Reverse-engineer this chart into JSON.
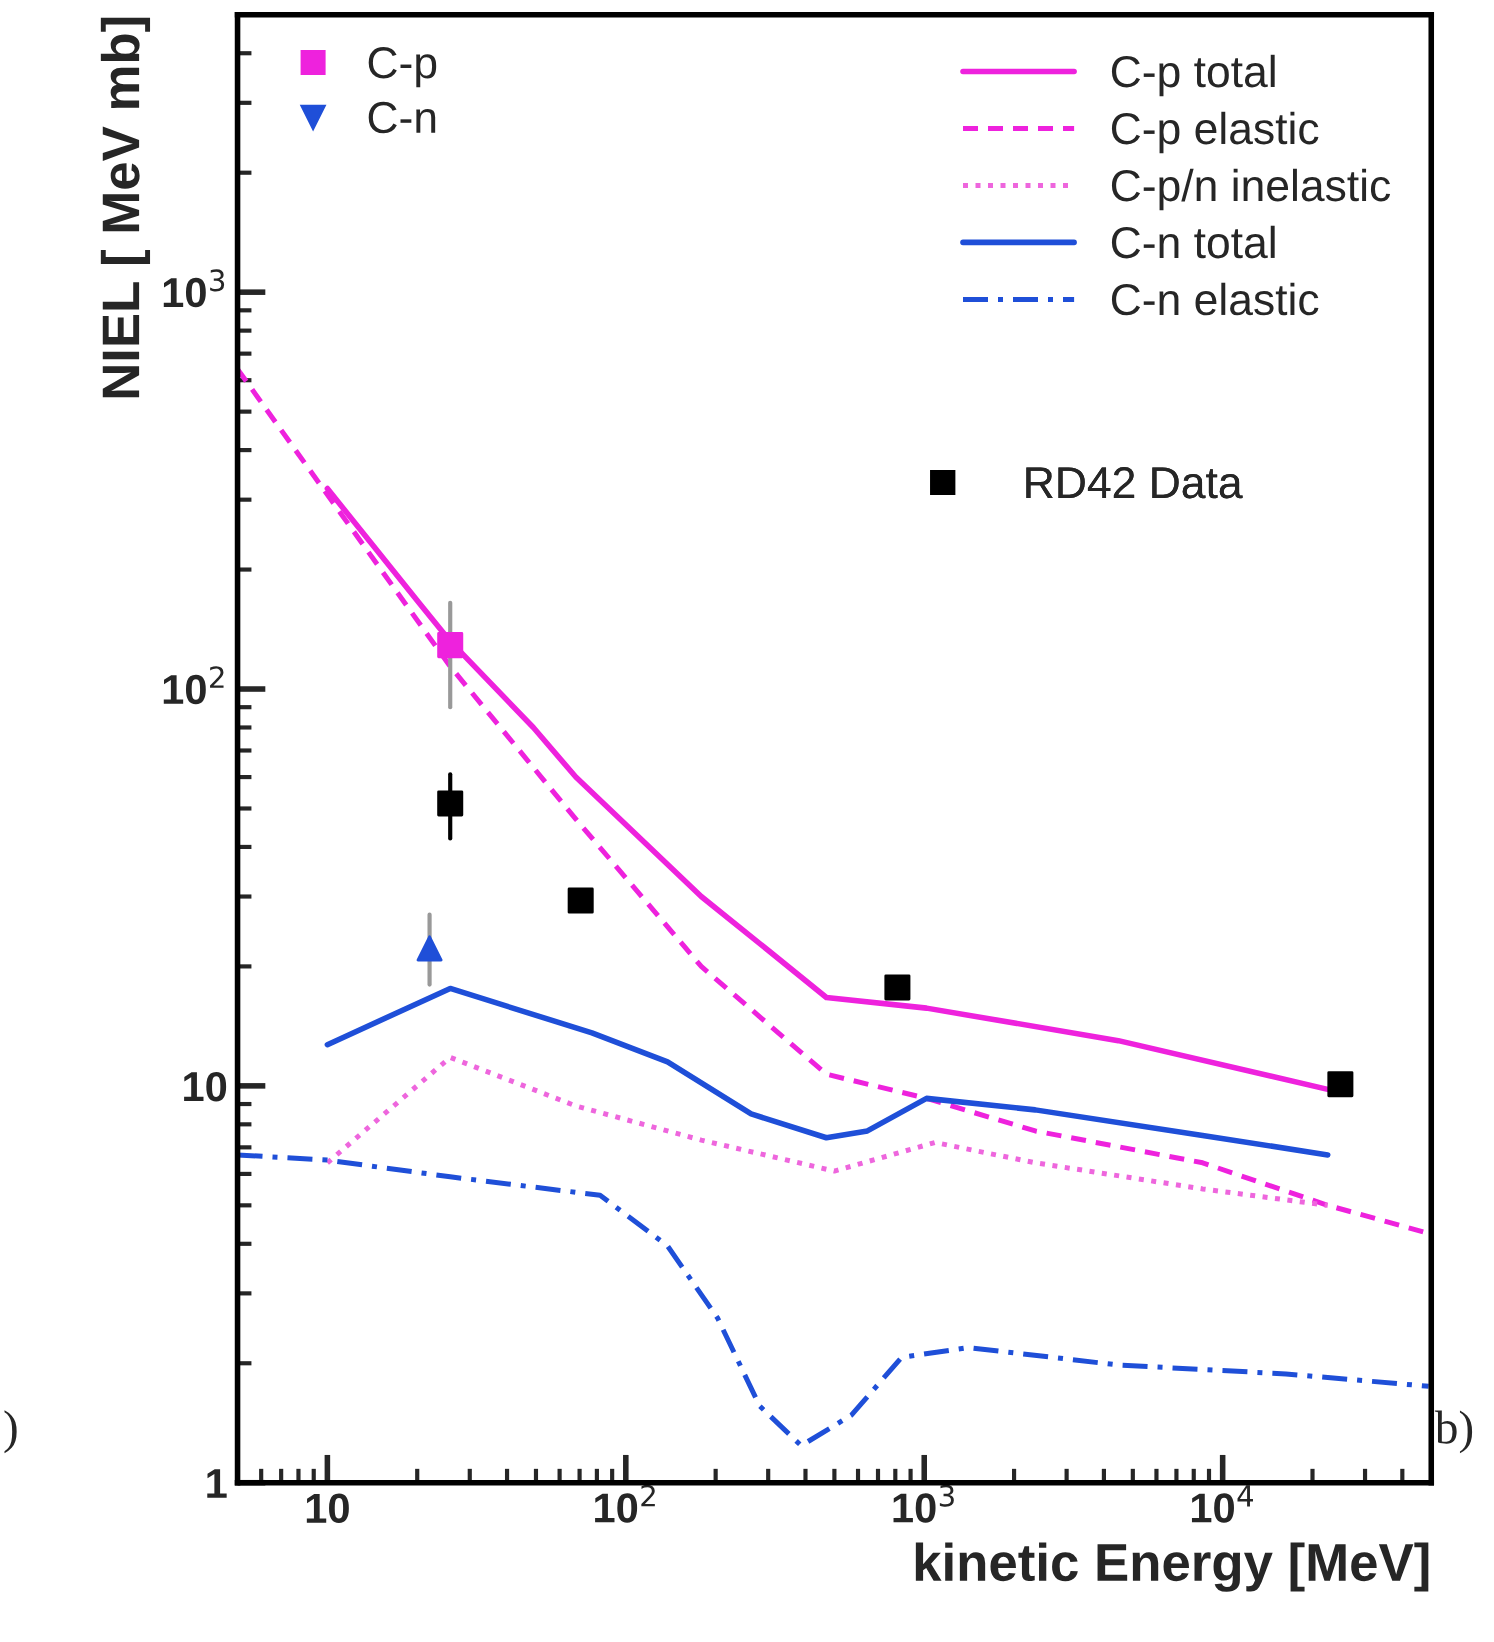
{
  "chart_data": {
    "type": "line",
    "xlabel": "kinetic Energy [MeV]",
    "ylabel": "NIEL [ MeV mb]",
    "log": "xy",
    "xlim": [
      5,
      50000
    ],
    "ylim": [
      1,
      5000
    ],
    "xticks": [
      10,
      {
        "value": 100,
        "label": "10$^{2}$"
      },
      {
        "value": 1000,
        "label": "10$^{3}$"
      },
      {
        "value": 10000,
        "label": "10$^{4}$"
      }
    ],
    "yticks": [
      1,
      10,
      {
        "value": 100,
        "label": "10$^{2}$"
      },
      {
        "value": 1000,
        "label": "10$^{3}$"
      }
    ],
    "grid": false,
    "legend": "top right",
    "annotations": [
      "b)",
      ")"
    ],
    "series": [
      {
        "name": "C-p total",
        "color": "#ee22dd",
        "line_style": "solid",
        "x": [
          10,
          20.4,
          25.8,
          49,
          68,
          179,
          299,
          470,
          1018,
          4470,
          22500
        ],
        "values": [
          320,
          164,
          132,
          80,
          60,
          30,
          22,
          16.7,
          15.7,
          13,
          9.8
        ]
      },
      {
        "name": "C-p elastic",
        "color": "#ee22dd",
        "line_style": "dashed",
        "x": [
          5,
          25.8,
          68,
          179,
          470,
          1018,
          2355,
          8570,
          22500,
          49000
        ],
        "values": [
          640,
          114,
          47,
          20,
          10.7,
          9.3,
          7.7,
          6.4,
          5.0,
          4.25
        ]
      },
      {
        "name": "C-p/n inelastic",
        "color": "#ee66dd",
        "line_style": "dotted",
        "x": [
          10,
          25.8,
          68,
          179,
          500,
          1086,
          2355,
          8570,
          22500
        ],
        "values": [
          6.4,
          11.8,
          8.9,
          7.3,
          6.1,
          7.2,
          6.4,
          5.5,
          5.0
        ]
      },
      {
        "name": "C-n total",
        "color": "#1f4fd8",
        "line_style": "solid",
        "x": [
          10,
          25.8,
          77,
          138,
          263,
          470,
          645,
          1018,
          2355,
          8570,
          22500
        ],
        "values": [
          12.7,
          17.6,
          13.6,
          11.5,
          8.5,
          7.4,
          7.7,
          9.3,
          8.7,
          7.5,
          6.7
        ]
      },
      {
        "name": "C-n elastic",
        "color": "#1f4fd8",
        "line_style": "dashdot",
        "x": [
          5,
          10,
          25.8,
          82,
          138,
          203,
          281,
          387,
          570,
          840,
          1405,
          4470,
          16300,
          49000
        ],
        "values": [
          6.7,
          6.5,
          5.9,
          5.3,
          3.95,
          2.6,
          1.56,
          1.24,
          1.48,
          2.07,
          2.19,
          1.98,
          1.88,
          1.75
        ]
      },
      {
        "name": "C-p",
        "type": "scatter",
        "color": "#ee22dd",
        "marker": "square",
        "x": [
          25.8
        ],
        "values": [
          129
        ],
        "errors": [
          [
            90,
            165
          ]
        ]
      },
      {
        "name": "C-n",
        "type": "scatter",
        "color": "#1f4fd8",
        "marker": "triangle",
        "x": [
          22
        ],
        "values": [
          22.2
        ],
        "errors": [
          [
            18,
            27
          ]
        ]
      },
      {
        "name": "RD42 Data",
        "type": "scatter",
        "color": "#000000",
        "marker": "square",
        "x": [
          25.8,
          70.6,
          813,
          24800
        ],
        "values": [
          51.5,
          29.3,
          17.7,
          10.1
        ],
        "errors": [
          [
            42,
            61
          ],
          null,
          null,
          null
        ]
      }
    ]
  }
}
